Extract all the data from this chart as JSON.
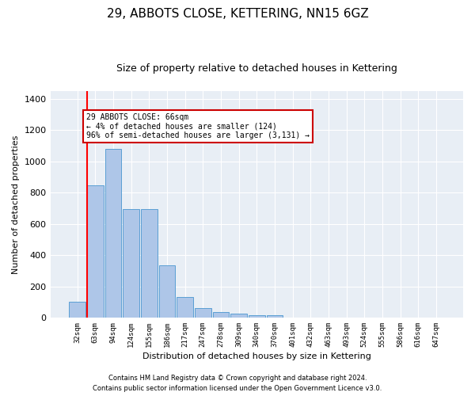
{
  "title1": "29, ABBOTS CLOSE, KETTERING, NN15 6GZ",
  "title2": "Size of property relative to detached houses in Kettering",
  "xlabel": "Distribution of detached houses by size in Kettering",
  "ylabel": "Number of detached properties",
  "footnote1": "Contains HM Land Registry data © Crown copyright and database right 2024.",
  "footnote2": "Contains public sector information licensed under the Open Government Licence v3.0.",
  "bin_labels": [
    "32sqm",
    "63sqm",
    "94sqm",
    "124sqm",
    "155sqm",
    "186sqm",
    "217sqm",
    "247sqm",
    "278sqm",
    "309sqm",
    "340sqm",
    "370sqm",
    "401sqm",
    "432sqm",
    "463sqm",
    "493sqm",
    "524sqm",
    "555sqm",
    "586sqm",
    "616sqm",
    "647sqm"
  ],
  "bar_values": [
    100,
    845,
    1080,
    695,
    695,
    335,
    130,
    60,
    35,
    25,
    15,
    15,
    0,
    0,
    0,
    0,
    0,
    0,
    0,
    0,
    0
  ],
  "bar_color": "#aec6e8",
  "bar_edge_color": "#5a9fd4",
  "property_line_bin": 1,
  "annotation_line1": "29 ABBOTS CLOSE: 66sqm",
  "annotation_line2": "← 4% of detached houses are smaller (124)",
  "annotation_line3": "96% of semi-detached houses are larger (3,131) →",
  "annotation_box_color": "#cc0000",
  "ylim": [
    0,
    1450
  ],
  "yticks": [
    0,
    200,
    400,
    600,
    800,
    1000,
    1200,
    1400
  ],
  "bg_color": "#e8eef5",
  "grid_color": "#ffffff",
  "title1_fontsize": 11,
  "title2_fontsize": 9
}
